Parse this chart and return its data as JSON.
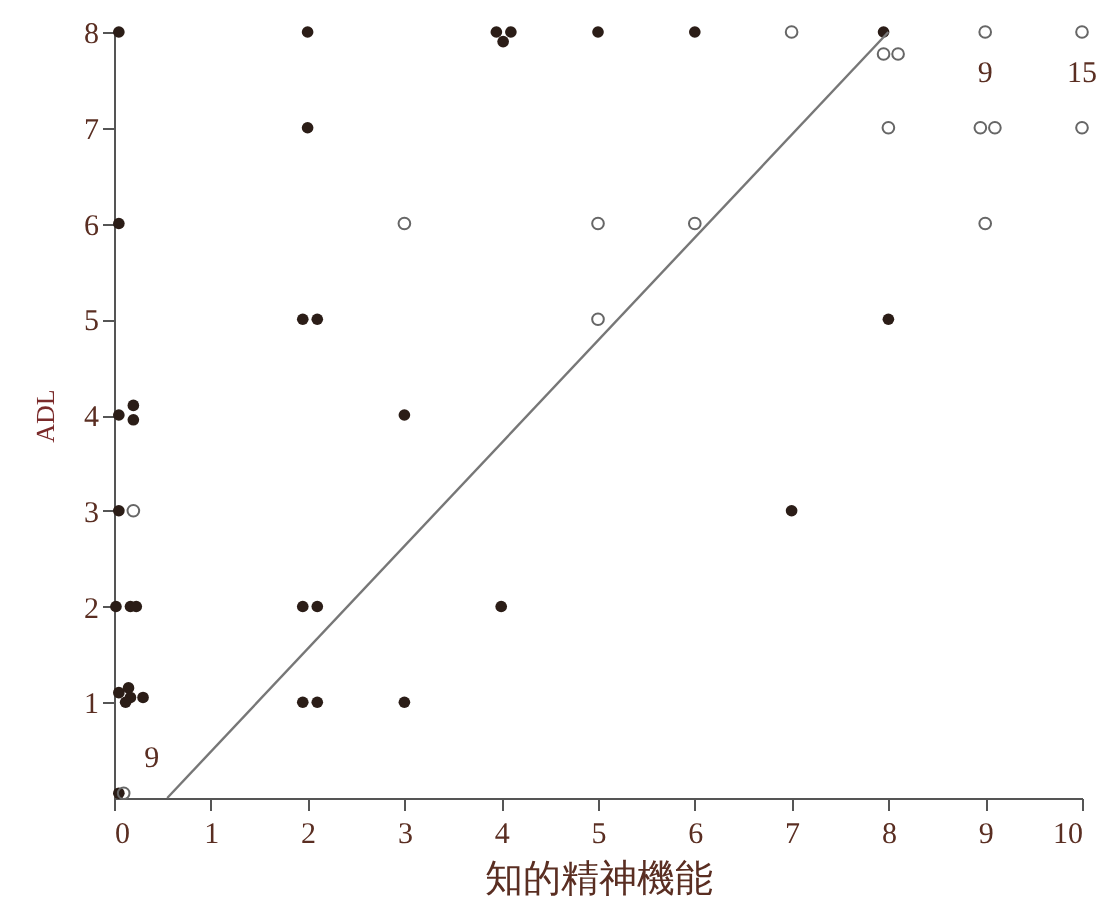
{
  "chart_data": {
    "type": "scatter",
    "xlabel": "知的精神機能",
    "ylabel": "ADL",
    "xlim": [
      0,
      10
    ],
    "ylim": [
      0,
      8
    ],
    "xticks": [
      0,
      1,
      2,
      3,
      4,
      5,
      6,
      7,
      8,
      9,
      10
    ],
    "yticks": [
      1,
      2,
      3,
      4,
      5,
      6,
      7,
      8
    ],
    "grid": false,
    "marker": "circle",
    "series": [
      {
        "color": "#2b1d17",
        "x": [
          0.05,
          2,
          3.95,
          4.1,
          4.02,
          5,
          6,
          7.95,
          2,
          0.05,
          1.95,
          2.1,
          0.05,
          0.2,
          0.2,
          3,
          0.05,
          0.02,
          0.17,
          0.23,
          1.95,
          2.1,
          4,
          0.05,
          0.15,
          0.17,
          0.3,
          0.12,
          1.95,
          2.1,
          3,
          7,
          8,
          0.05
        ],
        "values": [
          8,
          8,
          8,
          8,
          7.9,
          8,
          8,
          8,
          7,
          6,
          5,
          5,
          4,
          4.1,
          3.95,
          4,
          3,
          2,
          2,
          2,
          2,
          2,
          2,
          1.1,
          1.15,
          1.05,
          1.05,
          1,
          1,
          1,
          1,
          3,
          5,
          0.05
        ]
      },
      {
        "color": "#666666",
        "x": [
          7,
          7.95,
          8.1,
          9,
          10,
          8,
          8.95,
          9.1,
          10,
          3,
          5,
          6,
          9,
          5,
          0.2,
          0.1
        ],
        "values": [
          8,
          7.77,
          7.77,
          8,
          8,
          7,
          7,
          7,
          7,
          6,
          6,
          6,
          6,
          5,
          3,
          0.05
        ]
      },
      {
        "type": "line",
        "marker": "none",
        "color": "#777777",
        "x": [
          0.55,
          8
        ],
        "values": [
          0,
          8
        ]
      }
    ],
    "annotations": [
      {
        "text": "9",
        "x": 9,
        "y": 8
      },
      {
        "text": "15",
        "x": 10,
        "y": 8
      },
      {
        "text": "9",
        "x": 0.1,
        "y": 0.05
      }
    ]
  }
}
